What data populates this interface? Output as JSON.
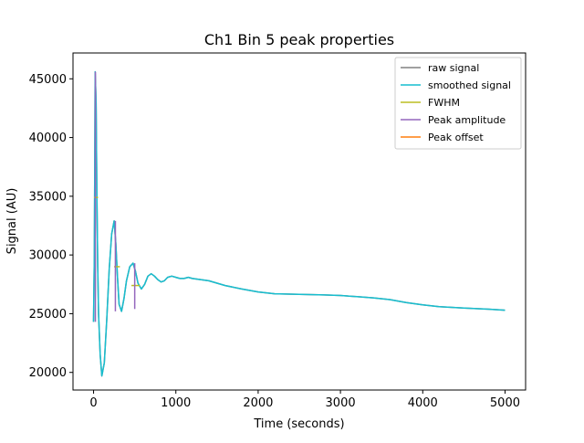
{
  "chart_data": {
    "type": "line",
    "title": "Ch1 Bin 5 peak properties",
    "xlabel": "Time (seconds)",
    "ylabel": "Signal (AU)",
    "xlim": [
      -250,
      5250
    ],
    "ylim": [
      18500,
      47200
    ],
    "xticks": [
      0,
      1000,
      2000,
      3000,
      4000,
      5000
    ],
    "xtick_labels": [
      "0",
      "1000",
      "2000",
      "3000",
      "4000",
      "5000"
    ],
    "yticks": [
      20000,
      25000,
      30000,
      35000,
      40000,
      45000
    ],
    "ytick_labels": [
      "20000",
      "25000",
      "30000",
      "35000",
      "40000",
      "45000"
    ],
    "grid": false,
    "legend_position": "top-right",
    "series": [
      {
        "name": "raw signal",
        "color": "#808080",
        "kind": "line",
        "x": [
          0,
          10,
          20,
          30,
          40,
          50,
          60,
          80,
          100,
          130,
          160,
          190,
          220,
          250,
          270,
          290,
          310,
          340,
          370,
          400,
          440,
          480,
          510,
          540,
          580,
          620,
          660,
          700,
          740,
          780,
          820,
          860,
          900,
          950,
          1000,
          1050,
          1100,
          1150,
          1200,
          1300,
          1400,
          1500,
          1600,
          1800,
          2000,
          2200,
          2500,
          2800,
          3000,
          3200,
          3400,
          3600,
          3800,
          4000,
          4200,
          4500,
          4800,
          5000
        ],
        "y": [
          24300,
          30000,
          45600,
          43000,
          35000,
          29000,
          25000,
          21500,
          19700,
          20800,
          24500,
          28800,
          31800,
          32900,
          31000,
          28200,
          25800,
          25200,
          26300,
          27800,
          29000,
          29300,
          28600,
          27600,
          27100,
          27500,
          28200,
          28400,
          28200,
          27900,
          27700,
          27800,
          28100,
          28200,
          28100,
          28000,
          28000,
          28100,
          28000,
          27900,
          27800,
          27600,
          27400,
          27100,
          26850,
          26700,
          26650,
          26600,
          26550,
          26450,
          26350,
          26200,
          25950,
          25750,
          25600,
          25480,
          25380,
          25300
        ]
      },
      {
        "name": "smoothed signal",
        "color": "#17becf",
        "kind": "line",
        "x": [
          0,
          10,
          20,
          30,
          40,
          50,
          60,
          80,
          100,
          130,
          160,
          190,
          220,
          250,
          270,
          290,
          310,
          340,
          370,
          400,
          440,
          480,
          510,
          540,
          580,
          620,
          660,
          700,
          740,
          780,
          820,
          860,
          900,
          950,
          1000,
          1050,
          1100,
          1150,
          1200,
          1300,
          1400,
          1500,
          1600,
          1800,
          2000,
          2200,
          2500,
          2800,
          3000,
          3200,
          3400,
          3600,
          3800,
          4000,
          4200,
          4500,
          4800,
          5000
        ],
        "y": [
          24300,
          30000,
          45600,
          43000,
          35000,
          29000,
          25000,
          21500,
          19700,
          20800,
          24500,
          28800,
          31800,
          32900,
          31000,
          28200,
          25800,
          25200,
          26300,
          27800,
          29000,
          29300,
          28600,
          27600,
          27100,
          27500,
          28200,
          28400,
          28200,
          27900,
          27700,
          27800,
          28100,
          28200,
          28100,
          28000,
          28000,
          28100,
          28000,
          27900,
          27800,
          27600,
          27400,
          27100,
          26850,
          26700,
          26650,
          26600,
          26550,
          26450,
          26350,
          26200,
          25950,
          25750,
          25600,
          25480,
          25380,
          25300
        ]
      },
      {
        "name": "FWHM",
        "color": "#bcbd22",
        "kind": "segments",
        "segments": [
          {
            "x": [
              5,
              55
            ],
            "y": [
              34900,
              34900
            ]
          },
          {
            "x": [
              250,
              320
            ],
            "y": [
              29000,
              29000
            ]
          },
          {
            "x": [
              460,
              560
            ],
            "y": [
              27400,
              27400
            ]
          }
        ]
      },
      {
        "name": "Peak amplitude",
        "color": "#9467bd",
        "kind": "segments",
        "segments": [
          {
            "x": [
              22,
              22
            ],
            "y": [
              24300,
              45600
            ]
          },
          {
            "x": [
              265,
              265
            ],
            "y": [
              25200,
              32900
            ]
          },
          {
            "x": [
              500,
              500
            ],
            "y": [
              25400,
              29300
            ]
          }
        ]
      },
      {
        "name": "Peak offset",
        "color": "#ff7f0e",
        "kind": "segments",
        "segments": []
      }
    ]
  }
}
